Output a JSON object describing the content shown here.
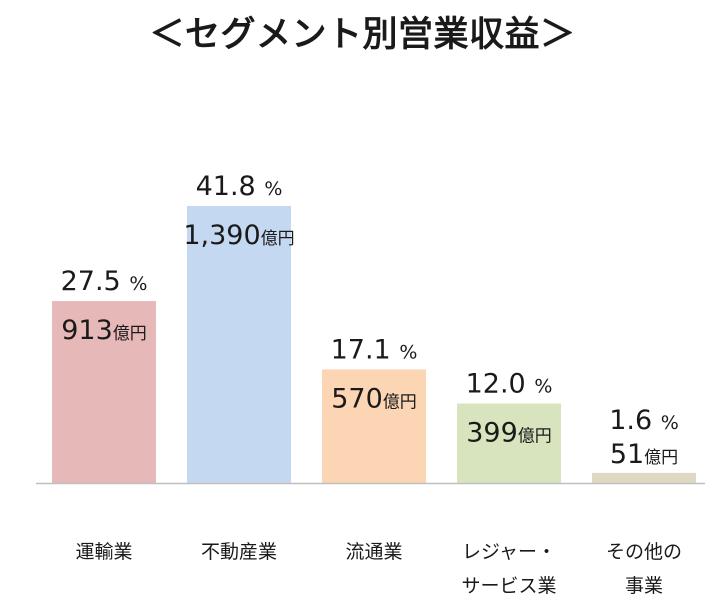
{
  "title": "＜セグメント別営業収益＞",
  "chart_data": {
    "type": "bar",
    "categories": [
      [
        "運輸業"
      ],
      [
        "不動産業"
      ],
      [
        "流通業"
      ],
      [
        "レジャー・",
        "サービス業"
      ],
      [
        "その他の",
        "事業"
      ]
    ],
    "series": [
      {
        "values": [
          913,
          1390,
          570,
          399,
          51
        ]
      }
    ],
    "percent_labels": [
      "27.5",
      "41.8",
      "17.1",
      "12.0",
      "1.6"
    ],
    "percent_unit": "%",
    "value_labels": [
      "913",
      "1,390",
      "570",
      "399",
      "51"
    ],
    "value_unit": "億円",
    "colors": [
      "#e6b8b7",
      "#c5d8f1",
      "#fcd5b5",
      "#d7e4bd",
      "#ddd9c3"
    ],
    "ylim": [
      0,
      1390
    ],
    "grid": false,
    "legend": "none"
  }
}
